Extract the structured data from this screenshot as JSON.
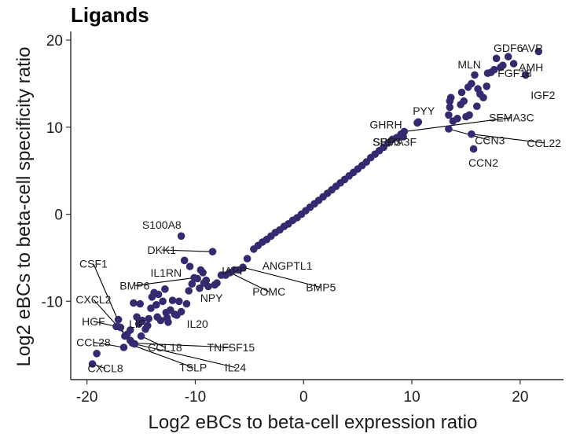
{
  "chart_data": {
    "type": "scatter",
    "title": "Ligands",
    "xlabel": "Log2 eBCs to beta-cell expression ratio",
    "ylabel": "Log2 eBCs to beta-cell specificity ratio",
    "xlim": [
      -21.5,
      24
    ],
    "ylim": [
      -19,
      21
    ],
    "xticks": [
      -20,
      -10,
      0,
      10,
      20
    ],
    "yticks": [
      -10,
      0,
      10,
      20
    ],
    "color": "#352a70",
    "grid": false,
    "legend": "none",
    "labeled_points": [
      {
        "name": "GDF6",
        "x": 18.9,
        "y": 18.1,
        "tx": 18.9,
        "ty": 19.1
      },
      {
        "name": "AVP",
        "x": 21.7,
        "y": 18.7,
        "tx": 21.1,
        "ty": 19.1
      },
      {
        "name": "AMH",
        "x": 19.4,
        "y": 17.3,
        "tx": 21.0,
        "ty": 16.9
      },
      {
        "name": "MLN",
        "x": 17.8,
        "y": 17.9,
        "tx": 15.3,
        "ty": 17.2
      },
      {
        "name": "FGF18",
        "x": 18.4,
        "y": 17.1,
        "tx": 19.5,
        "ty": 16.2
      },
      {
        "name": "IGF2",
        "x": 20.5,
        "y": 16.0,
        "tx": 22.1,
        "ty": 13.7
      },
      {
        "name": "PYY",
        "x": 10.6,
        "y": 10.6,
        "tx": 11.1,
        "ty": 11.9
      },
      {
        "name": "SEMA3C",
        "x": 9.3,
        "y": 9.5,
        "tx": 19.2,
        "ty": 11.1,
        "leader": true
      },
      {
        "name": "GHRH",
        "x": 9.0,
        "y": 9.2,
        "tx": 7.6,
        "ty": 10.3
      },
      {
        "name": "CCN3",
        "x": 13.4,
        "y": 9.8,
        "tx": 17.2,
        "ty": 8.5,
        "leader": true
      },
      {
        "name": "CCL22",
        "x": 15.5,
        "y": 9.2,
        "tx": 22.2,
        "ty": 8.2,
        "leader": true
      },
      {
        "name": "SEMA3F",
        "x": 8.6,
        "y": 8.8,
        "tx": 8.4,
        "ty": 8.3
      },
      {
        "name": "SPP3",
        "x": 9.2,
        "y": 8.9,
        "tx": 7.7,
        "ty": 8.3
      },
      {
        "name": "CCN2",
        "x": 15.7,
        "y": 7.5,
        "tx": 16.6,
        "ty": 5.9
      },
      {
        "name": "S100A8",
        "x": -11.3,
        "y": -2.5,
        "tx": -13.1,
        "ty": -1.2
      },
      {
        "name": "DKK1",
        "x": -8.4,
        "y": -4.3,
        "tx": -13.1,
        "ty": -4.1,
        "leader": true
      },
      {
        "name": "ANGPTL1",
        "x": -5.2,
        "y": -5.1,
        "tx": -1.5,
        "ty": -5.9
      },
      {
        "name": "CSF1",
        "x": -16.5,
        "y": -14.0,
        "tx": -19.4,
        "ty": -5.7,
        "leader": true
      },
      {
        "name": "IL1RN",
        "x": -9.3,
        "y": -6.7,
        "tx": -12.7,
        "ty": -6.7
      },
      {
        "name": "IAPP",
        "x": -6.4,
        "y": -6.4,
        "tx": -6.4,
        "ty": -6.5
      },
      {
        "name": "BMP5",
        "x": -5.6,
        "y": -6.1,
        "tx": 1.6,
        "ty": -8.4,
        "leader": true
      },
      {
        "name": "BMP6",
        "x": -10.1,
        "y": -7.3,
        "tx": -15.6,
        "ty": -8.2,
        "leader": true
      },
      {
        "name": "POMC",
        "x": -6.8,
        "y": -6.7,
        "tx": -3.2,
        "ty": -8.9,
        "leader": true
      },
      {
        "name": "NPY",
        "x": -7.2,
        "y": -7.0,
        "tx": -8.5,
        "ty": -9.6
      },
      {
        "name": "CXCL2",
        "x": -16.0,
        "y": -14.5,
        "tx": -19.4,
        "ty": -9.8,
        "leader": true
      },
      {
        "name": "HGF",
        "x": -17.3,
        "y": -12.9,
        "tx": -19.4,
        "ty": -12.3,
        "leader": true
      },
      {
        "name": "LIF",
        "x": -16.0,
        "y": -13.3,
        "tx": -15.4,
        "ty": -12.6
      },
      {
        "name": "IL20",
        "x": -11.3,
        "y": -11.2,
        "tx": -9.8,
        "ty": -12.6
      },
      {
        "name": "CCL28",
        "x": -16.6,
        "y": -15.3,
        "tx": -19.4,
        "ty": -14.7,
        "leader": true
      },
      {
        "name": "CCL18",
        "x": -15.0,
        "y": -14.0,
        "tx": -12.8,
        "ty": -15.3,
        "leader": true
      },
      {
        "name": "TNFSF15",
        "x": -15.8,
        "y": -14.8,
        "tx": -6.7,
        "ty": -15.3,
        "leader": true
      },
      {
        "name": "CXCL8",
        "x": -19.5,
        "y": -17.2,
        "tx": -18.3,
        "ty": -17.7,
        "leader": true
      },
      {
        "name": "TSLP",
        "x": -15.9,
        "y": -15.0,
        "tx": -10.2,
        "ty": -17.6,
        "leader": true
      },
      {
        "name": "IL24",
        "x": -15.6,
        "y": -14.9,
        "tx": -6.3,
        "ty": -17.6,
        "leader": true
      }
    ],
    "points": [
      [
        -19.5,
        -17.2
      ],
      [
        -19.1,
        -16.0
      ],
      [
        -17.3,
        -12.9
      ],
      [
        -17.1,
        -12.1
      ],
      [
        -16.9,
        -13.0
      ],
      [
        -16.6,
        -15.3
      ],
      [
        -16.5,
        -14.0
      ],
      [
        -16.3,
        -13.8
      ],
      [
        -16.0,
        -14.5
      ],
      [
        -16.0,
        -13.3
      ],
      [
        -15.8,
        -14.8
      ],
      [
        -15.6,
        -14.9
      ],
      [
        -15.7,
        -10.2
      ],
      [
        -15.4,
        -11.8
      ],
      [
        -15.2,
        -12.6
      ],
      [
        -15.1,
        -10.3
      ],
      [
        -15.0,
        -14.0
      ],
      [
        -14.9,
        -12.2
      ],
      [
        -14.6,
        -13.2
      ],
      [
        -14.4,
        -12.8
      ],
      [
        -14.3,
        -12.0
      ],
      [
        -14.1,
        -10.8
      ],
      [
        -14.0,
        -9.5
      ],
      [
        -13.8,
        -9.0
      ],
      [
        -13.6,
        -10.4
      ],
      [
        -13.5,
        -11.8
      ],
      [
        -13.4,
        -9.2
      ],
      [
        -13.2,
        -12.2
      ],
      [
        -13.0,
        -10.0
      ],
      [
        -12.8,
        -8.6
      ],
      [
        -12.7,
        -11.3
      ],
      [
        -12.6,
        -11.9
      ],
      [
        -12.5,
        -12.4
      ],
      [
        -12.3,
        -11.0
      ],
      [
        -12.1,
        -9.9
      ],
      [
        -11.9,
        -11.5
      ],
      [
        -11.7,
        -11.6
      ],
      [
        -11.5,
        -10.0
      ],
      [
        -11.3,
        -11.2
      ],
      [
        -11.3,
        -2.5
      ],
      [
        -11.0,
        -5.3
      ],
      [
        -10.8,
        -10.3
      ],
      [
        -10.6,
        -8.8
      ],
      [
        -10.5,
        -6.0
      ],
      [
        -10.3,
        -8.0
      ],
      [
        -10.1,
        -7.3
      ],
      [
        -9.8,
        -7.4
      ],
      [
        -9.6,
        -8.5
      ],
      [
        -9.5,
        -6.4
      ],
      [
        -9.3,
        -6.7
      ],
      [
        -9.2,
        -7.9
      ],
      [
        -9.0,
        -7.6
      ],
      [
        -8.8,
        -8.3
      ],
      [
        -8.4,
        -4.3
      ],
      [
        -8.2,
        -8.1
      ],
      [
        -8.0,
        -7.9
      ],
      [
        -7.6,
        -7.0
      ],
      [
        -7.2,
        -7.0
      ],
      [
        -6.8,
        -6.7
      ],
      [
        -6.4,
        -6.4
      ],
      [
        -6.0,
        -6.4
      ],
      [
        -5.6,
        -6.1
      ],
      [
        -5.2,
        -5.1
      ],
      [
        -4.6,
        -4.0
      ],
      [
        -4.2,
        -3.6
      ],
      [
        -3.8,
        -3.2
      ],
      [
        -3.4,
        -2.9
      ],
      [
        -3.0,
        -2.5
      ],
      [
        -2.6,
        -2.1
      ],
      [
        -2.2,
        -1.8
      ],
      [
        -1.8,
        -1.4
      ],
      [
        -1.4,
        -1.1
      ],
      [
        -1.0,
        -0.7
      ],
      [
        -0.6,
        -0.4
      ],
      [
        -0.2,
        0.0
      ],
      [
        0.2,
        0.4
      ],
      [
        0.6,
        0.8
      ],
      [
        1.0,
        1.2
      ],
      [
        1.4,
        1.6
      ],
      [
        1.8,
        2.0
      ],
      [
        2.2,
        2.4
      ],
      [
        2.6,
        2.8
      ],
      [
        3.0,
        3.2
      ],
      [
        3.4,
        3.6
      ],
      [
        3.8,
        4.0
      ],
      [
        4.2,
        4.4
      ],
      [
        4.6,
        4.8
      ],
      [
        5.0,
        5.2
      ],
      [
        5.4,
        5.6
      ],
      [
        5.8,
        6.0
      ],
      [
        6.2,
        6.5
      ],
      [
        6.6,
        6.9
      ],
      [
        7.0,
        7.3
      ],
      [
        7.4,
        7.7
      ],
      [
        7.8,
        8.2
      ],
      [
        8.2,
        8.6
      ],
      [
        8.6,
        8.8
      ],
      [
        9.0,
        9.2
      ],
      [
        9.2,
        8.9
      ],
      [
        9.3,
        9.5
      ],
      [
        10.5,
        10.5
      ],
      [
        10.6,
        10.6
      ],
      [
        13.4,
        9.8
      ],
      [
        13.4,
        11.4
      ],
      [
        13.5,
        12.3
      ],
      [
        13.5,
        13.0
      ],
      [
        13.6,
        13.4
      ],
      [
        13.8,
        10.7
      ],
      [
        14.2,
        11.0
      ],
      [
        14.5,
        12.6
      ],
      [
        14.6,
        14.0
      ],
      [
        14.8,
        13.0
      ],
      [
        15.0,
        11.2
      ],
      [
        15.2,
        14.6
      ],
      [
        15.3,
        11.4
      ],
      [
        15.5,
        9.2
      ],
      [
        15.5,
        15.0
      ],
      [
        15.7,
        7.5
      ],
      [
        15.8,
        16.0
      ],
      [
        16.0,
        12.4
      ],
      [
        16.1,
        14.4
      ],
      [
        16.3,
        13.8
      ],
      [
        16.6,
        13.4
      ],
      [
        16.9,
        14.7
      ],
      [
        17.0,
        16.2
      ],
      [
        17.3,
        16.3
      ],
      [
        17.6,
        16.6
      ],
      [
        17.8,
        17.9
      ],
      [
        18.2,
        16.9
      ],
      [
        18.4,
        17.1
      ],
      [
        18.9,
        18.1
      ],
      [
        19.4,
        17.3
      ],
      [
        20.5,
        16.0
      ],
      [
        21.7,
        18.7
      ]
    ]
  }
}
